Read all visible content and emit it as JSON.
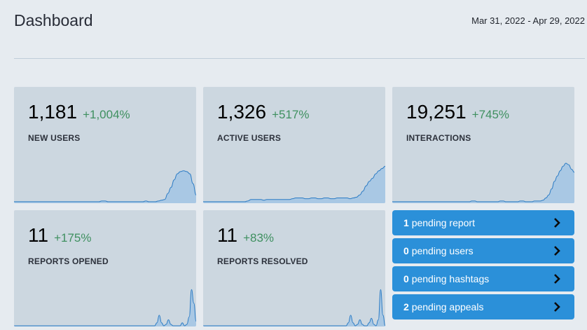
{
  "header": {
    "title": "Dashboard",
    "date_range": "Mar 31, 2022 - Apr 29, 2022"
  },
  "cards": [
    {
      "value": "1,181",
      "delta": "+1,004%",
      "label": "NEW USERS",
      "trend": [
        1,
        1,
        1,
        1,
        1,
        1,
        1,
        1,
        1,
        1,
        1,
        1,
        1,
        1,
        1,
        1,
        1,
        1,
        1,
        1,
        1,
        1,
        1,
        1,
        1,
        1,
        1,
        1,
        2,
        2,
        1,
        1,
        1,
        1,
        1,
        1,
        1,
        1,
        1,
        1,
        1,
        1,
        2,
        1,
        1,
        1,
        2,
        3,
        4,
        12,
        20,
        30,
        38,
        41,
        42,
        41,
        38,
        25,
        10
      ]
    },
    {
      "value": "1,326",
      "delta": "+517%",
      "label": "ACTIVE USERS",
      "trend": [
        1,
        1,
        1,
        1,
        1,
        1,
        1,
        1,
        1,
        1,
        1,
        1,
        1,
        1,
        2,
        4,
        4,
        4,
        4,
        3,
        4,
        4,
        4,
        4,
        4,
        4,
        4,
        4,
        5,
        6,
        6,
        6,
        5,
        5,
        6,
        6,
        5,
        5,
        6,
        6,
        5,
        5,
        6,
        6,
        6,
        6,
        5,
        6,
        7,
        10,
        15,
        22,
        28,
        32,
        38,
        42,
        45,
        48
      ]
    },
    {
      "value": "19,251",
      "delta": "+745%",
      "label": "INTERACTIONS",
      "trend": [
        1,
        1,
        1,
        1,
        1,
        1,
        1,
        1,
        1,
        1,
        1,
        1,
        1,
        1,
        1,
        1,
        1,
        1,
        1,
        1,
        1,
        1,
        1,
        1,
        1,
        1,
        1,
        1,
        2,
        2,
        1,
        1,
        1,
        1,
        1,
        1,
        1,
        1,
        2,
        2,
        1,
        1,
        1,
        1,
        1,
        2,
        2,
        1,
        1,
        1,
        2,
        2,
        2,
        3,
        6,
        10,
        18,
        28,
        35,
        42,
        48,
        52,
        50,
        44,
        40
      ]
    },
    {
      "value": "11",
      "delta": "+175%",
      "label": "REPORTS OPENED",
      "trend": [
        0,
        0,
        0,
        0,
        0,
        0,
        0,
        0,
        0,
        0,
        0,
        0,
        0,
        0,
        0,
        0,
        0,
        0,
        0,
        0,
        0,
        0,
        0,
        0,
        0,
        0,
        0,
        0,
        0,
        0,
        0,
        0,
        0,
        0,
        0,
        0,
        0,
        0,
        0,
        0,
        0,
        0,
        0,
        0,
        0,
        0,
        0,
        0,
        0,
        0,
        0,
        0,
        0,
        0,
        0,
        0,
        0,
        0,
        0,
        0,
        0,
        0,
        4,
        14,
        4,
        0,
        2,
        8,
        2,
        0,
        0,
        0,
        0,
        4,
        0,
        2,
        12,
        48,
        30,
        6
      ]
    },
    {
      "value": "11",
      "delta": "+83%",
      "label": "REPORTS RESOLVED",
      "trend": [
        0,
        0,
        0,
        0,
        0,
        0,
        0,
        0,
        0,
        0,
        0,
        0,
        0,
        0,
        0,
        0,
        0,
        0,
        0,
        0,
        0,
        0,
        0,
        0,
        0,
        0,
        0,
        0,
        0,
        0,
        0,
        0,
        0,
        0,
        0,
        0,
        0,
        0,
        0,
        0,
        0,
        0,
        0,
        0,
        0,
        0,
        0,
        0,
        0,
        0,
        0,
        0,
        0,
        0,
        0,
        0,
        0,
        0,
        0,
        0,
        0,
        0,
        0,
        4,
        14,
        4,
        0,
        2,
        8,
        2,
        0,
        0,
        4,
        10,
        2,
        0,
        8,
        48,
        14,
        0
      ]
    }
  ],
  "actions": [
    {
      "count": "1",
      "text": "pending report"
    },
    {
      "count": "0",
      "text": "pending users"
    },
    {
      "count": "0",
      "text": "pending hashtags"
    },
    {
      "count": "2",
      "text": "pending appeals"
    }
  ],
  "colors": {
    "spark_fill": "#a9c8e4",
    "spark_line": "#2b7bc4",
    "accent": "#2b90d9",
    "positive": "#3f9060"
  }
}
